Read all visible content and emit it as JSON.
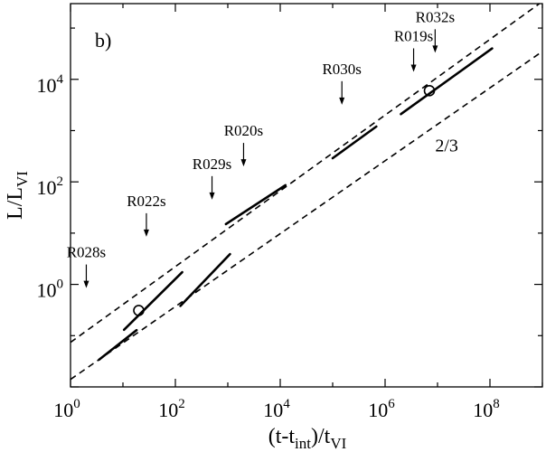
{
  "chart_data": {
    "type": "line",
    "panel_label": "b)",
    "xscale": "log",
    "yscale": "log",
    "xlim": [
      1,
      1000000000
    ],
    "ylim": [
      0.01,
      300000
    ],
    "xlabel": {
      "main": "(t-t",
      "sub1": "int",
      "mid": ")/t",
      "sub2": "VI"
    },
    "ylabel": {
      "main": "L/L",
      "sub": "VI"
    },
    "x_ticks": [
      {
        "base": "10",
        "exp": "0",
        "value": 1
      },
      {
        "base": "10",
        "exp": "2",
        "value": 100
      },
      {
        "base": "10",
        "exp": "4",
        "value": 10000
      },
      {
        "base": "10",
        "exp": "6",
        "value": 1000000
      },
      {
        "base": "10",
        "exp": "8",
        "value": 100000000
      }
    ],
    "y_ticks": [
      {
        "base": "10",
        "exp": "0",
        "value": 1
      },
      {
        "base": "10",
        "exp": "2",
        "value": 100
      },
      {
        "base": "10",
        "exp": "4",
        "value": 10000
      }
    ],
    "series": [
      {
        "x": [
          3.5,
          18.2
        ],
        "y": [
          0.034,
          0.128
        ]
      },
      {
        "x": [
          10.5,
          135
        ],
        "y": [
          0.13,
          1.73
        ]
      },
      {
        "x": [
          125,
          1100
        ],
        "y": [
          0.38,
          3.9
        ]
      },
      {
        "x": [
          920,
          12600
        ],
        "y": [
          15,
          86
        ]
      },
      {
        "x": [
          100000,
          680000
        ],
        "y": [
          290,
          1200
        ]
      },
      {
        "x": [
          2000000,
          110000000
        ],
        "y": [
          2100,
          40000
        ]
      }
    ],
    "reference_lines": [
      {
        "name": "",
        "x": [
          1,
          1000000000
        ],
        "y": [
          0.074,
          330000
        ]
      },
      {
        "name": "2/3",
        "x": [
          1,
          1000000000
        ],
        "y": [
          0.014,
          35000
        ]
      }
    ],
    "reference_label": "2/3",
    "markers": [
      {
        "x": 20,
        "y": 0.31
      },
      {
        "x": 7000000,
        "y": 6000
      }
    ],
    "annotations": [
      {
        "label": "R028s",
        "x": 2,
        "y": 0.85
      },
      {
        "label": "R022s",
        "x": 28,
        "y": 8.5
      },
      {
        "label": "R029s",
        "x": 500,
        "y": 45
      },
      {
        "label": "R020s",
        "x": 2000,
        "y": 200
      },
      {
        "label": "R030s",
        "x": 150000,
        "y": 3200
      },
      {
        "label": "R019s",
        "x": 3500000,
        "y": 14000
      },
      {
        "label": "R032s",
        "x": 9000000,
        "y": 33000
      }
    ]
  }
}
